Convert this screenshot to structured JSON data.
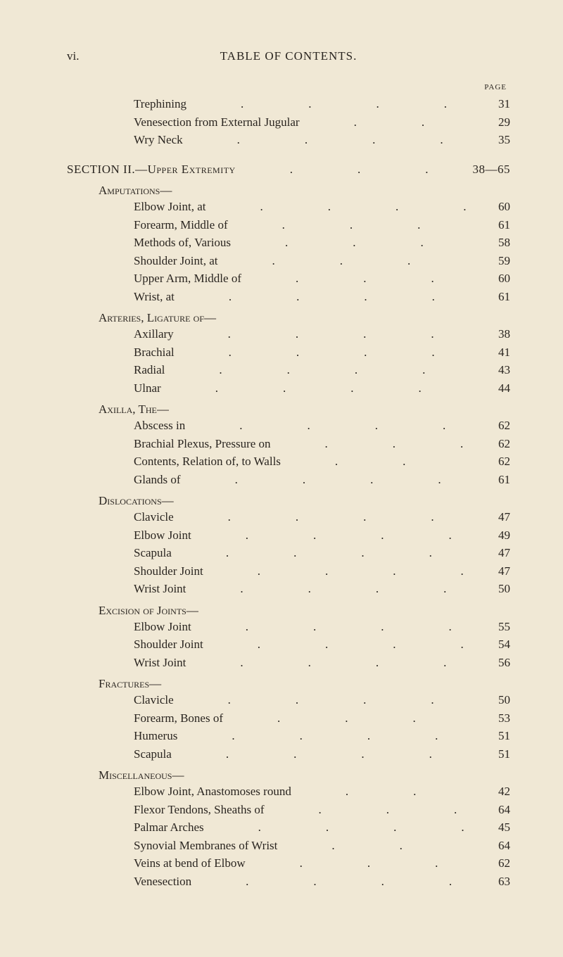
{
  "pageNumber": "vi.",
  "pageTitle": "TABLE OF CONTENTS.",
  "pageLabel": "PAGE",
  "colors": {
    "background": "#f0e8d5",
    "text": "#2a2520"
  },
  "typography": {
    "bodyFont": "Georgia, serif",
    "bodySize": 17,
    "labelSize": 11
  },
  "topEntries": [
    {
      "label": "Trephining",
      "page": "31",
      "indent": 2
    },
    {
      "label": "Venesection from External Jugular",
      "page": "29",
      "indent": 2
    },
    {
      "label": "Wry Neck",
      "page": "35",
      "indent": 2
    }
  ],
  "sectionII": {
    "label": "SECTION II.—Upper Extremity",
    "page": "38—65"
  },
  "groups": [
    {
      "heading": "Amputations—",
      "items": [
        {
          "label": "Elbow Joint, at",
          "page": "60"
        },
        {
          "label": "Forearm, Middle of",
          "page": "61"
        },
        {
          "label": "Methods of, Various",
          "page": "58"
        },
        {
          "label": "Shoulder Joint, at",
          "page": "59"
        },
        {
          "label": "Upper Arm, Middle of",
          "page": "60"
        },
        {
          "label": "Wrist, at",
          "page": "61"
        }
      ]
    },
    {
      "heading": "Arteries, Ligature of—",
      "items": [
        {
          "label": "Axillary",
          "page": "38"
        },
        {
          "label": "Brachial",
          "page": "41"
        },
        {
          "label": "Radial",
          "page": "43"
        },
        {
          "label": "Ulnar",
          "page": "44"
        }
      ]
    },
    {
      "heading": "Axilla, The—",
      "items": [
        {
          "label": "Abscess in",
          "page": "62"
        },
        {
          "label": "Brachial Plexus, Pressure on",
          "page": "62"
        },
        {
          "label": "Contents, Relation of, to Walls",
          "page": "62"
        },
        {
          "label": "Glands of",
          "page": "61"
        }
      ]
    },
    {
      "heading": "Dislocations—",
      "items": [
        {
          "label": "Clavicle",
          "page": "47"
        },
        {
          "label": "Elbow Joint",
          "page": "49"
        },
        {
          "label": "Scapula",
          "page": "47"
        },
        {
          "label": "Shoulder Joint",
          "page": "47"
        },
        {
          "label": "Wrist Joint",
          "page": "50"
        }
      ]
    },
    {
      "heading": "Excision of Joints—",
      "items": [
        {
          "label": "Elbow Joint",
          "page": "55"
        },
        {
          "label": "Shoulder Joint",
          "page": "54"
        },
        {
          "label": "Wrist Joint",
          "page": "56"
        }
      ]
    },
    {
      "heading": "Fractures—",
      "items": [
        {
          "label": "Clavicle",
          "page": "50"
        },
        {
          "label": "Forearm, Bones of",
          "page": "53"
        },
        {
          "label": "Humerus",
          "page": "51"
        },
        {
          "label": "Scapula",
          "page": "51"
        }
      ]
    },
    {
      "heading": "Miscellaneous—",
      "items": [
        {
          "label": "Elbow Joint, Anastomoses round",
          "page": "42"
        },
        {
          "label": "Flexor Tendons, Sheaths of",
          "page": "64"
        },
        {
          "label": "Palmar Arches",
          "page": "45"
        },
        {
          "label": "Synovial Membranes of Wrist",
          "page": "64"
        },
        {
          "label": "Veins at bend of Elbow",
          "page": "62"
        },
        {
          "label": "Venesection",
          "page": "63"
        }
      ]
    }
  ]
}
